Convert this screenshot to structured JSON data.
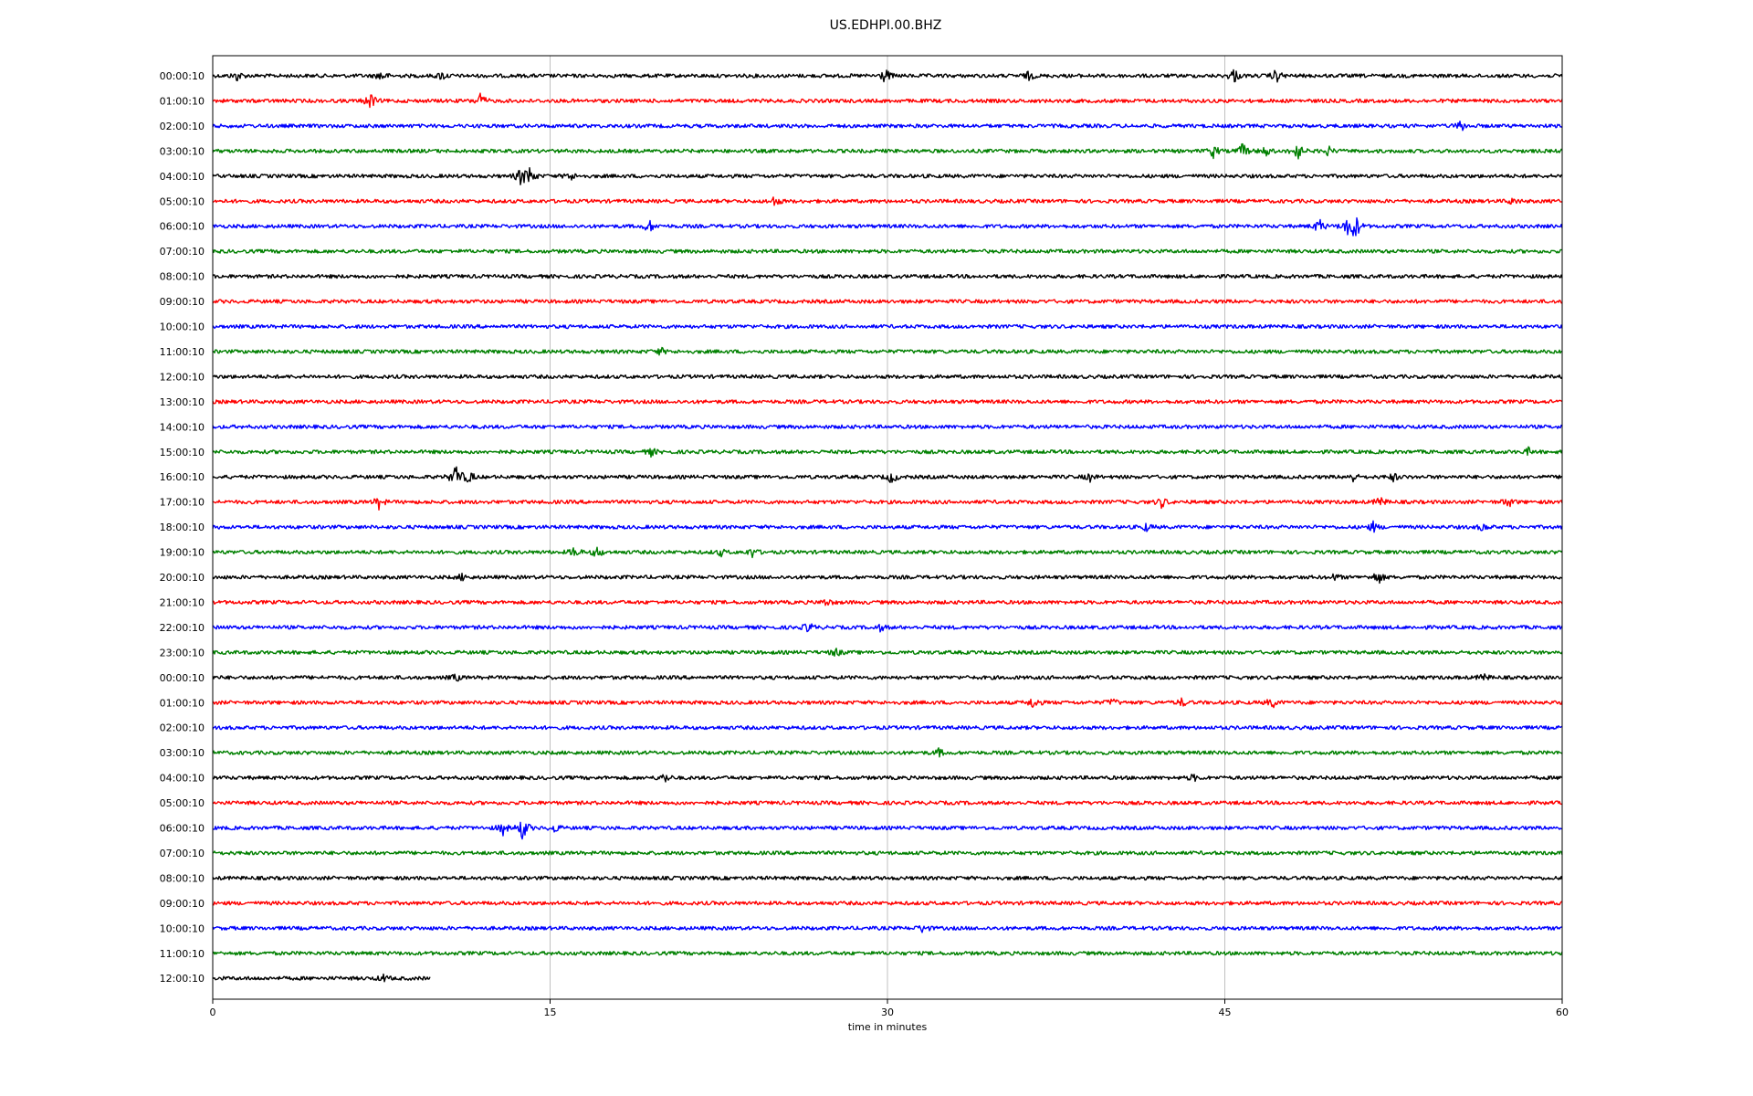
{
  "chart_data": {
    "type": "line",
    "title": "US.EDHPI.00.BHZ",
    "xlabel": "time in minutes",
    "ylabel": "",
    "xlim": [
      0,
      60
    ],
    "x_ticks": [
      0,
      15,
      30,
      45,
      60
    ],
    "grid": "vertical lines at 15, 30, 45 minutes",
    "trace_colors": [
      "#000000",
      "#ff0000",
      "#0000ff",
      "#008000"
    ],
    "row_labels": [
      "00:00:10",
      "01:00:10",
      "02:00:10",
      "03:00:10",
      "04:00:10",
      "05:00:10",
      "06:00:10",
      "07:00:10",
      "08:00:10",
      "09:00:10",
      "10:00:10",
      "11:00:10",
      "12:00:10",
      "13:00:10",
      "14:00:10",
      "15:00:10",
      "16:00:10",
      "17:00:10",
      "18:00:10",
      "19:00:10",
      "20:00:10",
      "21:00:10",
      "22:00:10",
      "23:00:10",
      "00:00:10",
      "01:00:10",
      "02:00:10",
      "03:00:10",
      "04:00:10",
      "05:00:10",
      "06:00:10",
      "07:00:10",
      "08:00:10",
      "09:00:10",
      "10:00:10",
      "11:00:10",
      "12:00:10"
    ],
    "last_row_end_minute": 9.7,
    "events": [
      {
        "row": 0,
        "minute": 1.1,
        "amp": 0.45
      },
      {
        "row": 0,
        "minute": 7.5,
        "amp": 0.5
      },
      {
        "row": 0,
        "minute": 10.2,
        "amp": 0.4
      },
      {
        "row": 0,
        "minute": 29.9,
        "amp": 0.7
      },
      {
        "row": 0,
        "minute": 36.3,
        "amp": 0.4
      },
      {
        "row": 0,
        "minute": 45.4,
        "amp": 0.7
      },
      {
        "row": 0,
        "minute": 47.3,
        "amp": 0.6
      },
      {
        "row": 1,
        "minute": 7.0,
        "amp": 0.8
      },
      {
        "row": 1,
        "minute": 11.9,
        "amp": 0.7
      },
      {
        "row": 2,
        "minute": 55.5,
        "amp": 0.5
      },
      {
        "row": 3,
        "minute": 44.5,
        "amp": 0.6
      },
      {
        "row": 3,
        "minute": 45.8,
        "amp": 0.7
      },
      {
        "row": 3,
        "minute": 46.8,
        "amp": 0.5
      },
      {
        "row": 3,
        "minute": 48.2,
        "amp": 1.0
      },
      {
        "row": 3,
        "minute": 49.6,
        "amp": 0.4
      },
      {
        "row": 4,
        "minute": 13.7,
        "amp": 0.8
      },
      {
        "row": 4,
        "minute": 14.1,
        "amp": 0.9
      },
      {
        "row": 4,
        "minute": 15.9,
        "amp": 0.4
      },
      {
        "row": 5,
        "minute": 25.0,
        "amp": 0.5
      },
      {
        "row": 5,
        "minute": 57.8,
        "amp": 0.3
      },
      {
        "row": 6,
        "minute": 19.4,
        "amp": 0.6
      },
      {
        "row": 6,
        "minute": 49.2,
        "amp": 0.7
      },
      {
        "row": 6,
        "minute": 50.4,
        "amp": 0.8
      },
      {
        "row": 6,
        "minute": 50.8,
        "amp": 1.3
      },
      {
        "row": 11,
        "minute": 19.9,
        "amp": 0.35
      },
      {
        "row": 15,
        "minute": 19.5,
        "amp": 0.35
      },
      {
        "row": 15,
        "minute": 58.5,
        "amp": 0.3
      },
      {
        "row": 16,
        "minute": 10.8,
        "amp": 1.3
      },
      {
        "row": 16,
        "minute": 11.4,
        "amp": 0.6
      },
      {
        "row": 16,
        "minute": 30.2,
        "amp": 0.6
      },
      {
        "row": 16,
        "minute": 39.0,
        "amp": 0.35
      },
      {
        "row": 16,
        "minute": 50.7,
        "amp": 0.4
      },
      {
        "row": 16,
        "minute": 52.5,
        "amp": 0.35
      },
      {
        "row": 17,
        "minute": 7.4,
        "amp": 0.6
      },
      {
        "row": 17,
        "minute": 42.2,
        "amp": 0.5
      },
      {
        "row": 17,
        "minute": 51.9,
        "amp": 0.5
      },
      {
        "row": 17,
        "minute": 57.6,
        "amp": 0.5
      },
      {
        "row": 18,
        "minute": 41.5,
        "amp": 0.35
      },
      {
        "row": 18,
        "minute": 51.6,
        "amp": 0.45
      },
      {
        "row": 18,
        "minute": 56.5,
        "amp": 0.35
      },
      {
        "row": 19,
        "minute": 16.1,
        "amp": 0.5
      },
      {
        "row": 19,
        "minute": 17.1,
        "amp": 0.55
      },
      {
        "row": 19,
        "minute": 22.6,
        "amp": 0.3
      },
      {
        "row": 19,
        "minute": 24.0,
        "amp": 0.45
      },
      {
        "row": 20,
        "minute": 11.1,
        "amp": 0.3
      },
      {
        "row": 20,
        "minute": 49.9,
        "amp": 0.3
      },
      {
        "row": 20,
        "minute": 51.8,
        "amp": 0.7
      },
      {
        "row": 21,
        "minute": 27.3,
        "amp": 0.35
      },
      {
        "row": 22,
        "minute": 26.5,
        "amp": 0.5
      },
      {
        "row": 22,
        "minute": 29.7,
        "amp": 0.3
      },
      {
        "row": 23,
        "minute": 27.7,
        "amp": 0.4
      },
      {
        "row": 24,
        "minute": 10.8,
        "amp": 0.35
      },
      {
        "row": 24,
        "minute": 56.5,
        "amp": 0.35
      },
      {
        "row": 25,
        "minute": 36.5,
        "amp": 0.6
      },
      {
        "row": 25,
        "minute": 40.0,
        "amp": 0.35
      },
      {
        "row": 25,
        "minute": 43.1,
        "amp": 0.35
      },
      {
        "row": 25,
        "minute": 47.1,
        "amp": 0.5
      },
      {
        "row": 27,
        "minute": 32.3,
        "amp": 0.35
      },
      {
        "row": 28,
        "minute": 20.1,
        "amp": 0.45
      },
      {
        "row": 28,
        "minute": 43.6,
        "amp": 0.3
      },
      {
        "row": 30,
        "minute": 12.9,
        "amp": 0.6
      },
      {
        "row": 30,
        "minute": 13.8,
        "amp": 1.2
      },
      {
        "row": 30,
        "minute": 15.2,
        "amp": 0.4
      },
      {
        "row": 34,
        "minute": 31.6,
        "amp": 0.45
      },
      {
        "row": 36,
        "minute": 7.6,
        "amp": 0.3
      }
    ]
  }
}
